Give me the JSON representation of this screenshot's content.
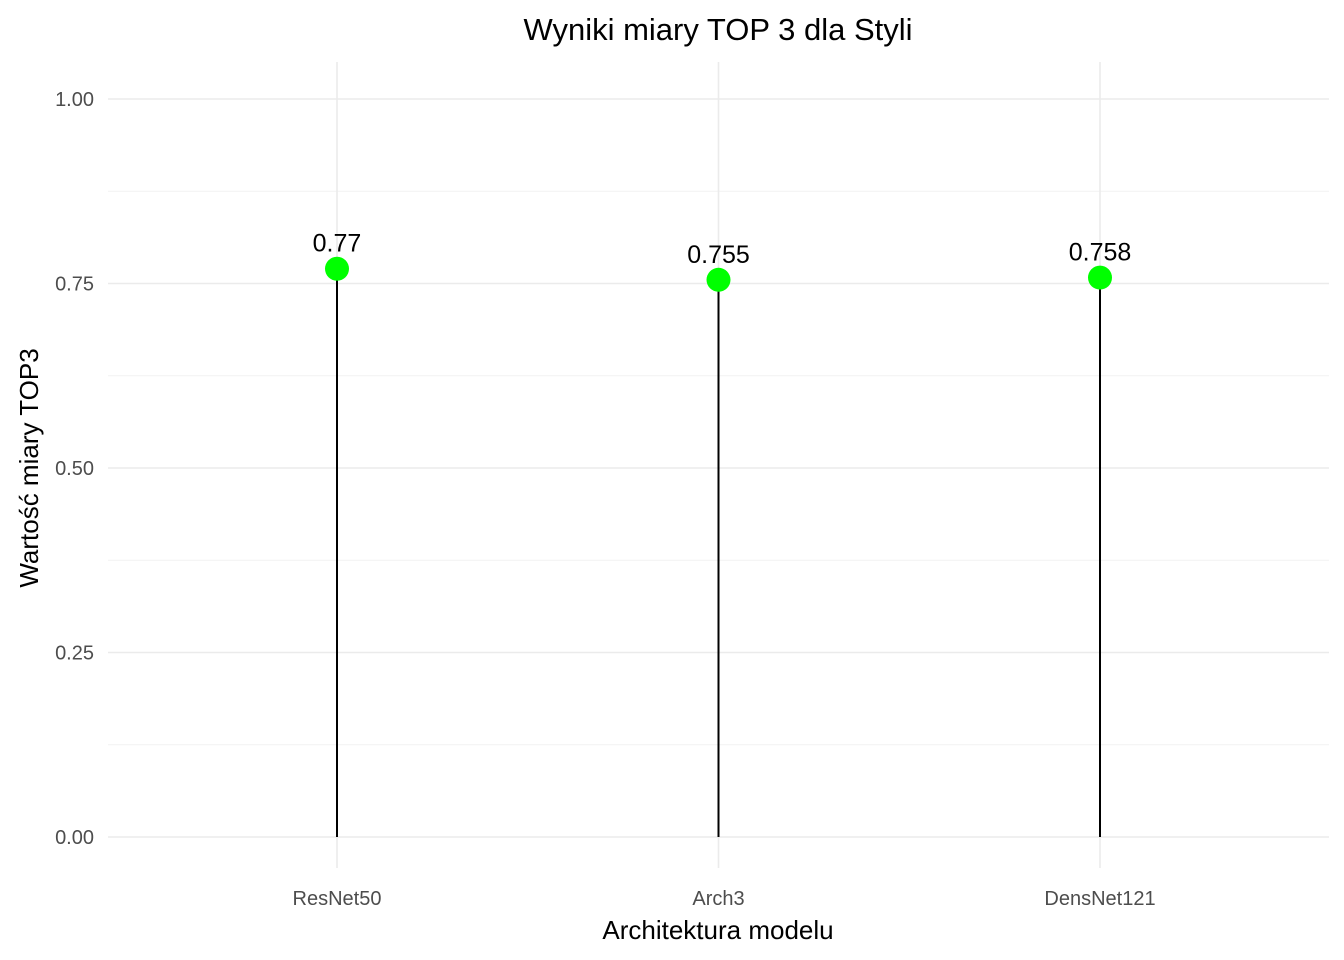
{
  "chart_data": {
    "type": "lollipop",
    "title": "Wyniki miary TOP 3 dla Styli",
    "xlabel": "Architektura modelu",
    "ylabel": "Wartość miary TOP3",
    "categories": [
      "ResNet50",
      "Arch3",
      "DensNet121"
    ],
    "values": [
      0.77,
      0.755,
      0.758
    ],
    "value_labels": [
      "0.77",
      "0.755",
      "0.758"
    ],
    "ylim": [
      0,
      1
    ],
    "yticks": [
      0,
      0.25,
      0.5,
      0.75,
      1.0
    ],
    "ytick_labels": [
      "0.00",
      "0.25",
      "0.50",
      "0.75",
      "1.00"
    ],
    "grid": true,
    "point_color": "#00ff00",
    "stem_color": "#000000"
  }
}
